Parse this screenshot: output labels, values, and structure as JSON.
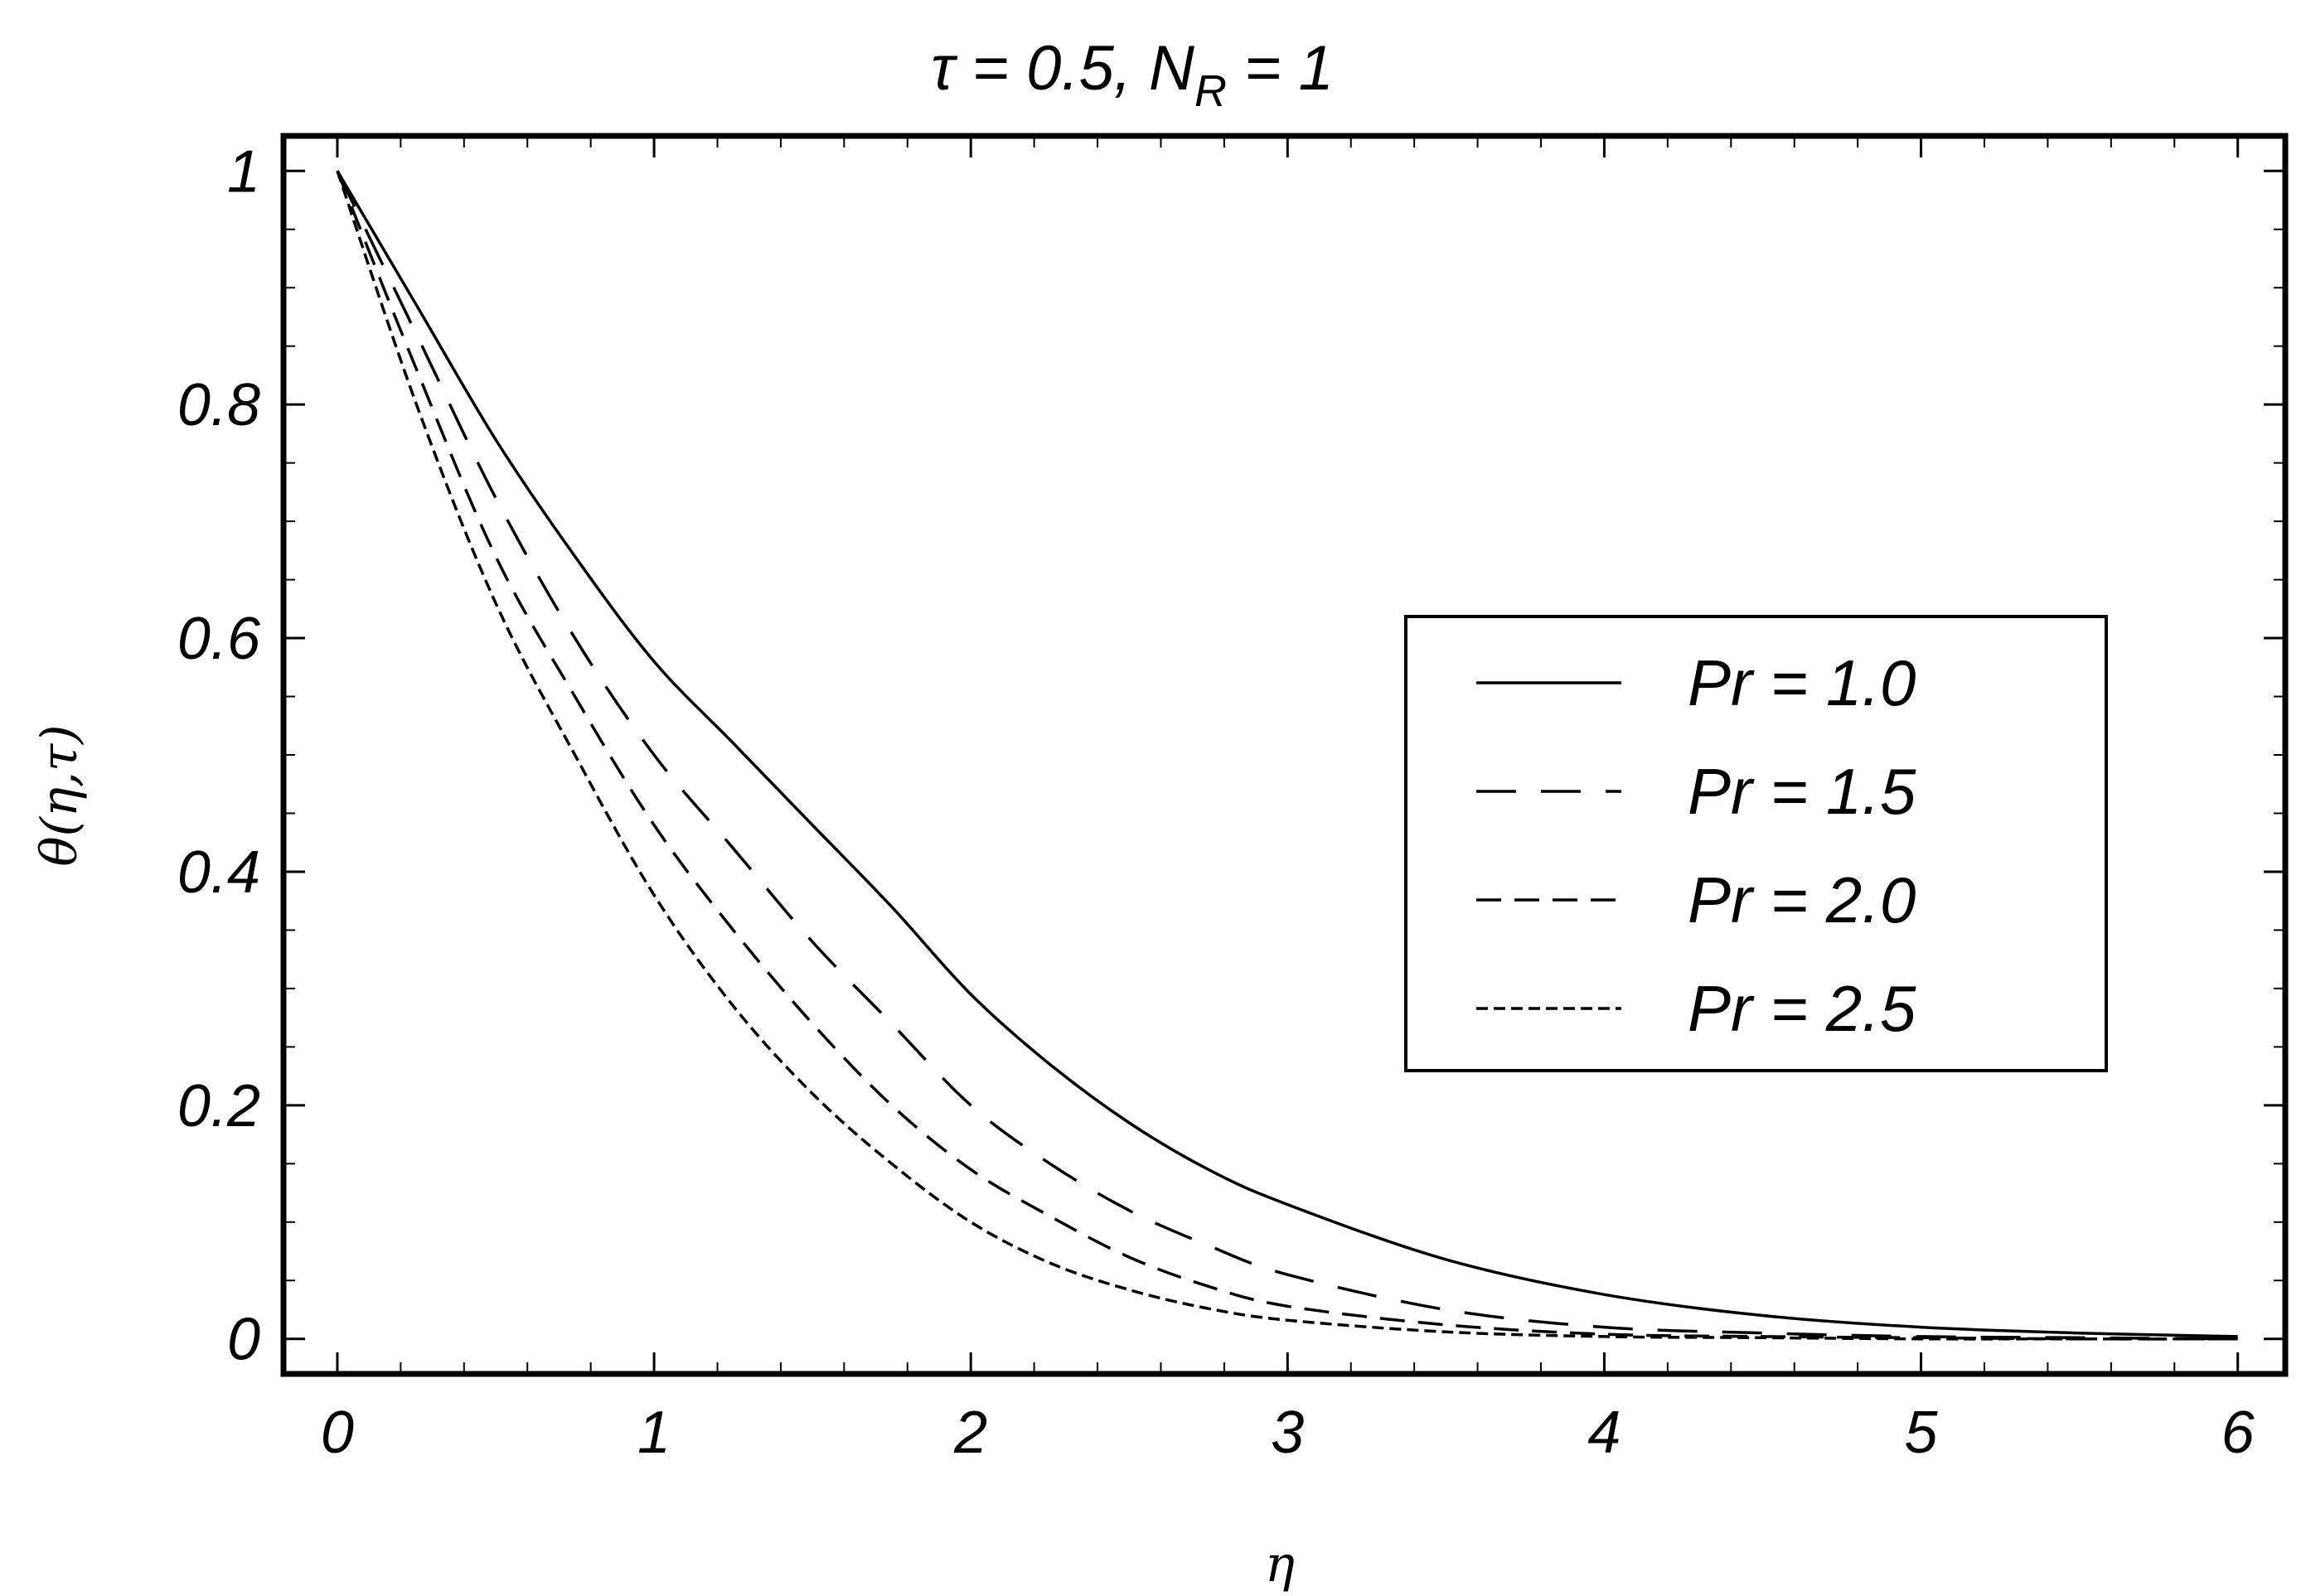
{
  "chart_data": {
    "type": "line",
    "title": {
      "prefix": "τ = 0.5, N",
      "subscript": "R",
      "suffix": " = 1"
    },
    "xlabel": "η",
    "ylabel": "θ(η,τ)",
    "xlim": [
      -0.17,
      6.15
    ],
    "ylim": [
      -0.03,
      1.03
    ],
    "xticks": [
      0,
      1,
      2,
      3,
      4,
      5,
      6
    ],
    "xtick_labels": [
      "0",
      "1",
      "2",
      "3",
      "4",
      "5",
      "6"
    ],
    "yticks": [
      0,
      0.2,
      0.4,
      0.6,
      0.8,
      1
    ],
    "ytick_labels": [
      "0",
      "0.2",
      "0.4",
      "0.6",
      "0.8",
      "1"
    ],
    "grid": false,
    "legend_position": "right",
    "series": [
      {
        "name": "Pr = 1.0",
        "dash": "solid",
        "x": [
          0,
          0.25,
          0.5,
          0.75,
          1,
          1.25,
          1.5,
          1.75,
          2,
          2.25,
          2.5,
          2.75,
          3,
          3.5,
          4,
          4.5,
          5,
          5.5,
          6
        ],
        "values": [
          1,
          0.885,
          0.77,
          0.67,
          0.58,
          0.51,
          0.44,
          0.37,
          0.295,
          0.235,
          0.185,
          0.145,
          0.115,
          0.068,
          0.038,
          0.02,
          0.01,
          0.005,
          0.002
        ]
      },
      {
        "name": "Pr = 1.5",
        "dash": "long",
        "x": [
          0,
          0.25,
          0.5,
          0.75,
          1,
          1.25,
          1.5,
          1.75,
          2,
          2.25,
          2.5,
          2.75,
          3,
          3.5,
          4,
          4.5,
          5,
          5.5,
          6
        ],
        "values": [
          1,
          0.86,
          0.72,
          0.6,
          0.5,
          0.42,
          0.34,
          0.27,
          0.2,
          0.15,
          0.11,
          0.08,
          0.055,
          0.025,
          0.01,
          0.005,
          0.002,
          0.001,
          0
        ]
      },
      {
        "name": "Pr = 2.0",
        "dash": "medium",
        "x": [
          0,
          0.25,
          0.5,
          0.75,
          1,
          1.25,
          1.5,
          1.75,
          2,
          2.25,
          2.5,
          2.75,
          3,
          3.5,
          4,
          4.5,
          5,
          5.5,
          6
        ],
        "values": [
          1,
          0.83,
          0.67,
          0.55,
          0.44,
          0.35,
          0.27,
          0.2,
          0.145,
          0.105,
          0.07,
          0.045,
          0.028,
          0.012,
          0.004,
          0.002,
          0.001,
          0,
          0
        ]
      },
      {
        "name": "Pr = 2.5",
        "dash": "short",
        "x": [
          0,
          0.25,
          0.5,
          0.75,
          1,
          1.25,
          1.5,
          1.75,
          2,
          2.25,
          2.5,
          2.75,
          3,
          3.5,
          4,
          4.5,
          5,
          5.5,
          6
        ],
        "values": [
          1,
          0.8,
          0.63,
          0.5,
          0.38,
          0.285,
          0.21,
          0.15,
          0.1,
          0.065,
          0.042,
          0.026,
          0.016,
          0.006,
          0.002,
          0.001,
          0,
          0,
          0
        ]
      }
    ]
  }
}
